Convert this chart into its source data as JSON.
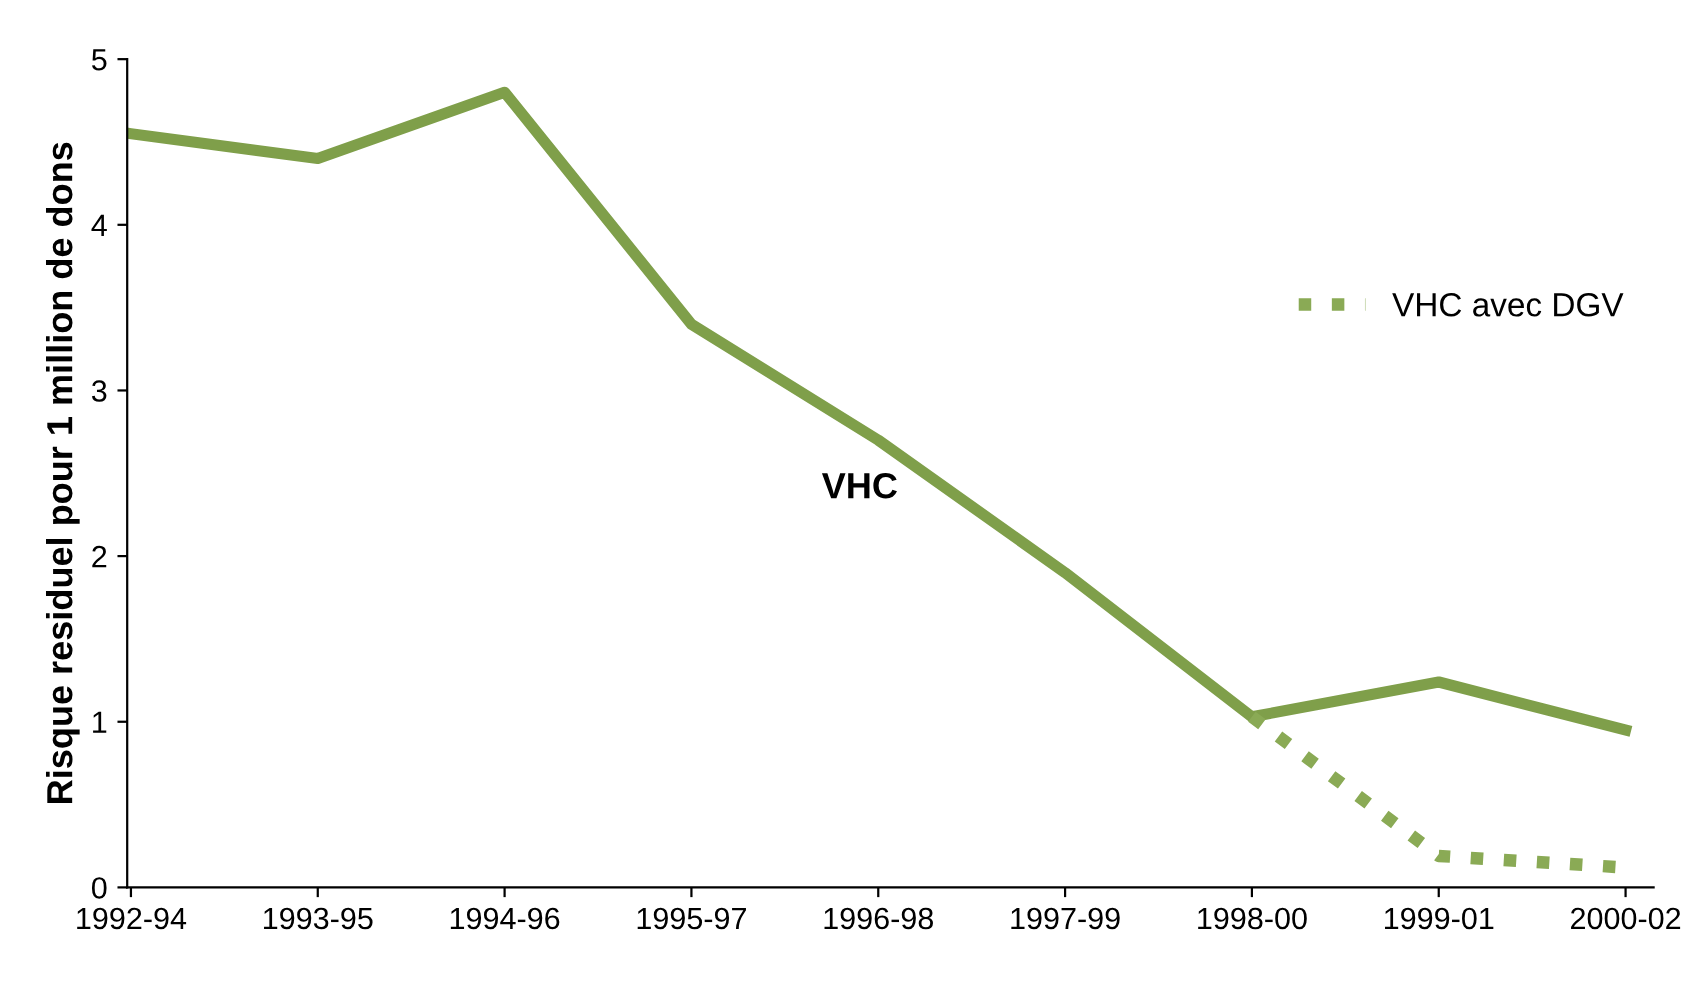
{
  "chart_data": {
    "type": "line",
    "ylabel": "Risque residuel pour 1 million de dons",
    "categories": [
      "1992-94",
      "1993-95",
      "1994-96",
      "1995-97",
      "1996-98",
      "1997-99",
      "1998-00",
      "1999-01",
      "2000-02"
    ],
    "series": [
      {
        "color": "#7f9f4a",
        "line_style": "solid",
        "values": [
          4.55,
          4.4,
          4.8,
          3.4,
          2.7,
          1.9,
          1.03,
          1.24,
          0.95
        ]
      },
      {
        "name": "VHC avec DGV",
        "color": "#8aaa55",
        "line_style": "dotted",
        "values": [
          null,
          null,
          null,
          null,
          null,
          null,
          1.03,
          0.19,
          0.12
        ]
      }
    ],
    "annotations": [
      "VHC"
    ],
    "ylim": [
      0,
      5
    ],
    "yticks": [
      0,
      1,
      2,
      3,
      4,
      5
    ],
    "grid": false,
    "legend": "right",
    "marker": "none"
  }
}
